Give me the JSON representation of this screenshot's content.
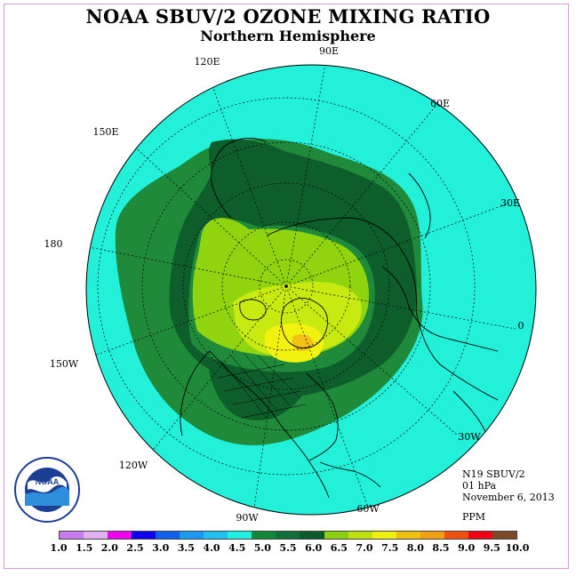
{
  "title": "NOAA SBUV/2 OZONE MIXING RATIO",
  "subtitle": "Northern Hemisphere",
  "longitude_labels": [
    "90E",
    "60E",
    "30E",
    "0",
    "30W",
    "60W",
    "90W",
    "120W",
    "150W",
    "180",
    "150E",
    "120E"
  ],
  "info": {
    "satellite": "N19 SBUV/2",
    "pressure": "01 hPa",
    "date": "November 6, 2013",
    "units": "PPM"
  },
  "logo": {
    "text": "NOAA",
    "icon": "noaa-seal-icon"
  },
  "colorbar": {
    "ticks": [
      "1.0",
      "1.5",
      "2.0",
      "2.5",
      "3.0",
      "3.5",
      "4.0",
      "4.5",
      "5.0",
      "5.5",
      "6.0",
      "6.5",
      "7.0",
      "7.5",
      "8.0",
      "8.5",
      "9.0",
      "9.5",
      "10.0"
    ],
    "colors": [
      "#c77df0",
      "#e0b0f0",
      "#f000f0",
      "#1000f0",
      "#1060f0",
      "#1a9af0",
      "#20c0f0",
      "#20f0e0",
      "#108a3a",
      "#10703a",
      "#0b5a2a",
      "#8ccf10",
      "#c0e010",
      "#f0f010",
      "#f0c010",
      "#f0a010",
      "#f05010",
      "#f00010"
    ],
    "last_color": "#7a4a2a"
  },
  "colors": {
    "ocean_fill": "#22f0d8",
    "level_5_5": "#1f8a3a",
    "level_6_0": "#0d5e2b",
    "level_6_5": "#8fd40f",
    "level_7_0": "#c9ea10",
    "level_7_5": "#f2f210",
    "level_8_0": "#f3c112"
  }
}
